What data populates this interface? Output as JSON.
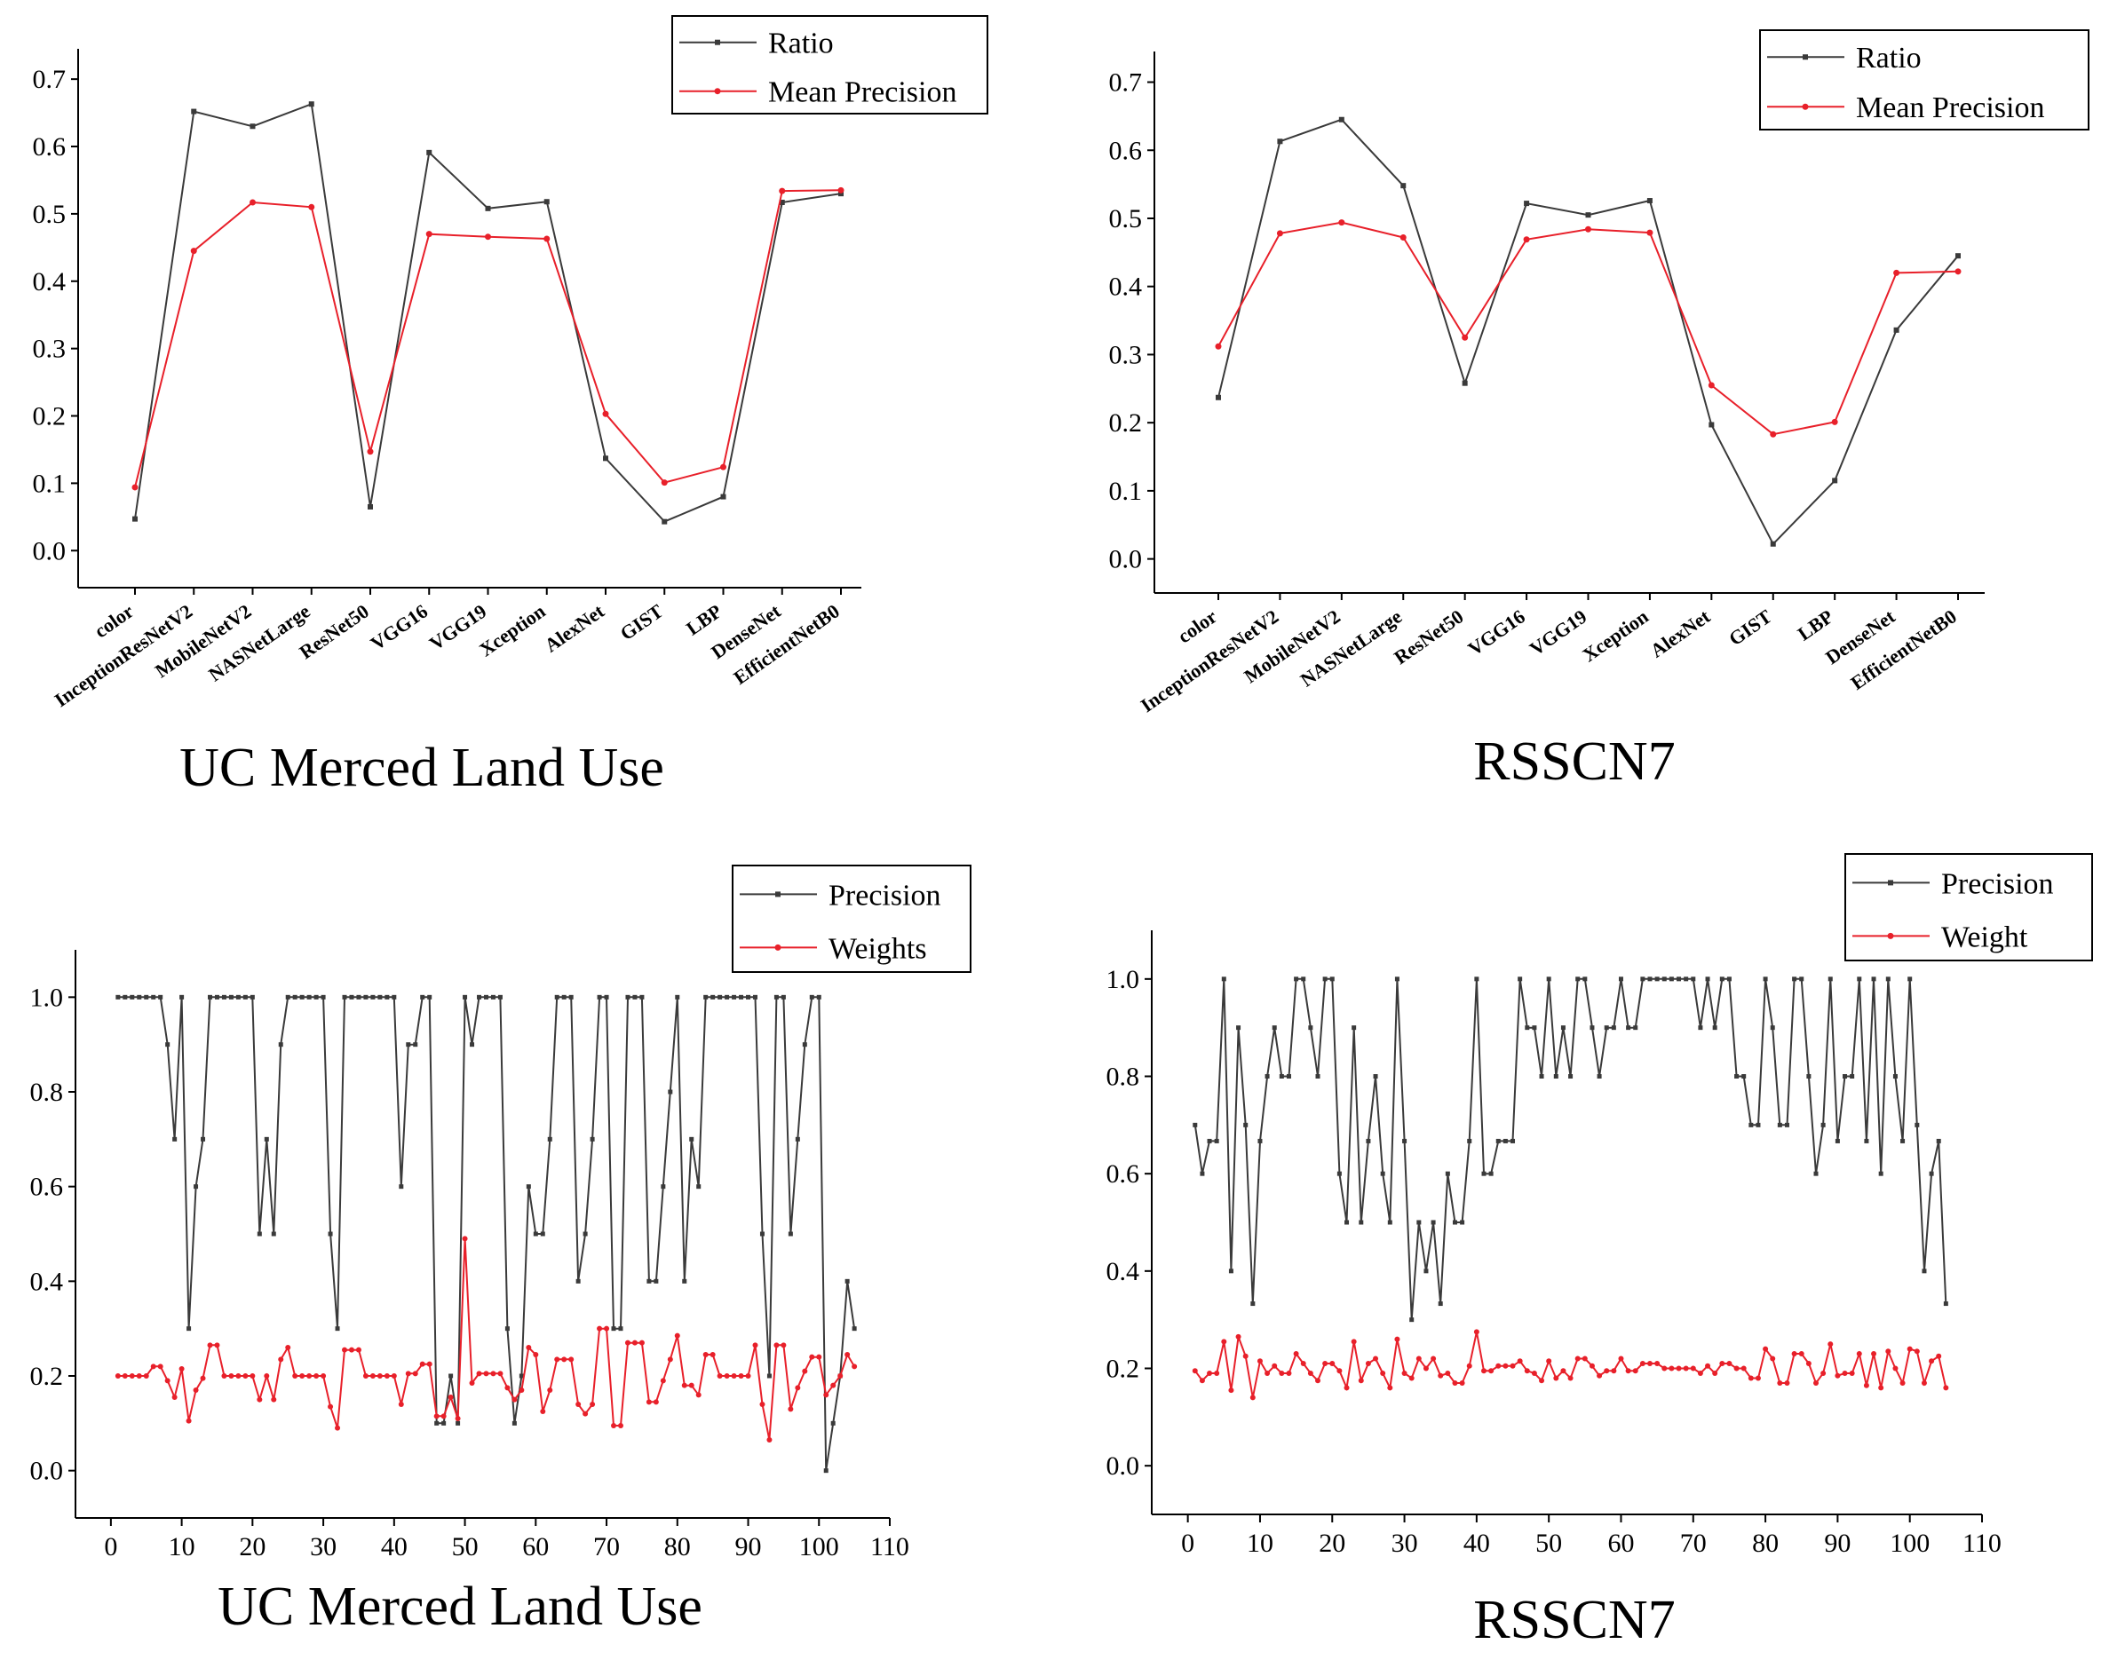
{
  "chart_data": [
    {
      "type": "line",
      "title": "UC Merced Land Use",
      "xlabel": "",
      "ylabel": "",
      "categories": [
        "color",
        "InceptionResNetV2",
        "MobileNetV2",
        "NASNetLarge",
        "ResNet50",
        "VGG16",
        "VGG19",
        "Xception",
        "AlexNet",
        "GIST",
        "LBP",
        "DenseNet",
        "EfficientNetB0"
      ],
      "ylim": [
        -0.055,
        0.745
      ],
      "yticks": [
        0.0,
        0.1,
        0.2,
        0.3,
        0.4,
        0.5,
        0.6,
        0.7
      ],
      "ytick_labels": [
        "0.0",
        "0.1",
        "0.2",
        "0.3",
        "0.4",
        "0.5",
        "0.6",
        "0.7"
      ],
      "legend_position": "top-right",
      "series": [
        {
          "name": "Ratio",
          "color": "#3a3a3a",
          "marker": "square",
          "values": [
            0.047,
            0.652,
            0.63,
            0.663,
            0.065,
            0.591,
            0.508,
            0.518,
            0.137,
            0.043,
            0.08,
            0.517,
            0.53
          ]
        },
        {
          "name": "Mean Precision",
          "color": "#e8202a",
          "marker": "circle",
          "values": [
            0.094,
            0.445,
            0.517,
            0.51,
            0.147,
            0.47,
            0.466,
            0.463,
            0.203,
            0.101,
            0.124,
            0.534,
            0.535
          ]
        }
      ]
    },
    {
      "type": "line",
      "title": "RSSCN7",
      "xlabel": "",
      "ylabel": "",
      "categories": [
        "color",
        "InceptionResNetV2",
        "MobileNetV2",
        "NASNetLarge",
        "ResNet50",
        "VGG16",
        "VGG19",
        "Xception",
        "AlexNet",
        "GIST",
        "LBP",
        "DenseNet",
        "EfficientNetB0"
      ],
      "ylim": [
        -0.05,
        0.745
      ],
      "yticks": [
        0.0,
        0.1,
        0.2,
        0.3,
        0.4,
        0.5,
        0.6,
        0.7
      ],
      "ytick_labels": [
        "0.0",
        "0.1",
        "0.2",
        "0.3",
        "0.4",
        "0.5",
        "0.6",
        "0.7"
      ],
      "legend_position": "top-right",
      "series": [
        {
          "name": "Ratio",
          "color": "#3a3a3a",
          "marker": "square",
          "values": [
            0.237,
            0.613,
            0.645,
            0.548,
            0.258,
            0.522,
            0.505,
            0.526,
            0.197,
            0.022,
            0.115,
            0.336,
            0.445
          ]
        },
        {
          "name": "Mean Precision",
          "color": "#e8202a",
          "marker": "circle",
          "values": [
            0.312,
            0.478,
            0.494,
            0.472,
            0.325,
            0.469,
            0.484,
            0.479,
            0.255,
            0.183,
            0.201,
            0.42,
            0.422
          ]
        }
      ]
    },
    {
      "type": "line",
      "title": "UC Merced Land Use",
      "xlabel": "",
      "ylabel": "",
      "xlim": [
        -5,
        110
      ],
      "xticks": [
        0,
        10,
        20,
        30,
        40,
        50,
        60,
        70,
        80,
        90,
        100,
        110
      ],
      "xtick_labels": [
        "0",
        "10",
        "20",
        "30",
        "40",
        "50",
        "60",
        "70",
        "80",
        "90",
        "100",
        "110"
      ],
      "ylim": [
        -0.1,
        1.1
      ],
      "yticks": [
        0.0,
        0.2,
        0.4,
        0.6,
        0.8,
        1.0
      ],
      "ytick_labels": [
        "0.0",
        "0.2",
        "0.4",
        "0.6",
        "0.8",
        "1.0"
      ],
      "legend_position": "top-right",
      "x_start": 1,
      "series": [
        {
          "name": "Precision",
          "color": "#3a3a3a",
          "marker": "square",
          "values": [
            1,
            1,
            1,
            1,
            1,
            1,
            1,
            0.9,
            0.7,
            1,
            0.3,
            0.6,
            0.7,
            1,
            1,
            1,
            1,
            1,
            1,
            1,
            0.5,
            0.7,
            0.5,
            0.9,
            1,
            1,
            1,
            1,
            1,
            1,
            0.5,
            0.3,
            1,
            1,
            1,
            1,
            1,
            1,
            1,
            1,
            0.6,
            0.9,
            0.9,
            1,
            1,
            0.1,
            0.1,
            0.2,
            0.1,
            1,
            0.9,
            1,
            1,
            1,
            1,
            0.3,
            0.1,
            0.2,
            0.6,
            0.5,
            0.5,
            0.7,
            1,
            1,
            1,
            0.4,
            0.5,
            0.7,
            1,
            1,
            0.3,
            0.3,
            1,
            1,
            1,
            0.4,
            0.4,
            0.6,
            0.8,
            1,
            0.4,
            0.7,
            0.6,
            1,
            1,
            1,
            1,
            1,
            1,
            1,
            1,
            0.5,
            0.2,
            1,
            1,
            0.5,
            0.7,
            0.9,
            1,
            1,
            0,
            0.1,
            0.2,
            0.4,
            0.3
          ]
        },
        {
          "name": "Weights",
          "color": "#e8202a",
          "marker": "circle",
          "values": [
            0.2,
            0.2,
            0.2,
            0.2,
            0.2,
            0.22,
            0.22,
            0.19,
            0.155,
            0.215,
            0.105,
            0.17,
            0.195,
            0.265,
            0.265,
            0.2,
            0.2,
            0.2,
            0.2,
            0.2,
            0.15,
            0.2,
            0.15,
            0.235,
            0.26,
            0.2,
            0.2,
            0.2,
            0.2,
            0.2,
            0.135,
            0.09,
            0.255,
            0.255,
            0.255,
            0.2,
            0.2,
            0.2,
            0.2,
            0.2,
            0.14,
            0.205,
            0.205,
            0.225,
            0.225,
            0.115,
            0.115,
            0.155,
            0.11,
            0.49,
            0.185,
            0.205,
            0.205,
            0.205,
            0.205,
            0.175,
            0.15,
            0.17,
            0.26,
            0.245,
            0.125,
            0.17,
            0.235,
            0.235,
            0.235,
            0.14,
            0.12,
            0.14,
            0.3,
            0.3,
            0.095,
            0.095,
            0.27,
            0.27,
            0.27,
            0.145,
            0.145,
            0.19,
            0.235,
            0.285,
            0.18,
            0.18,
            0.16,
            0.245,
            0.245,
            0.2,
            0.2,
            0.2,
            0.2,
            0.2,
            0.265,
            0.14,
            0.065,
            0.265,
            0.265,
            0.13,
            0.175,
            0.21,
            0.24,
            0.24,
            0.16,
            0.18,
            0.2,
            0.245,
            0.22
          ]
        }
      ]
    },
    {
      "type": "line",
      "title": "RSSCN7",
      "xlabel": "",
      "ylabel": "",
      "xlim": [
        -5,
        110
      ],
      "xticks": [
        0,
        10,
        20,
        30,
        40,
        50,
        60,
        70,
        80,
        90,
        100,
        110
      ],
      "xtick_labels": [
        "0",
        "10",
        "20",
        "30",
        "40",
        "50",
        "60",
        "70",
        "80",
        "90",
        "100",
        "110"
      ],
      "ylim": [
        -0.1,
        1.1
      ],
      "yticks": [
        0.0,
        0.2,
        0.4,
        0.6,
        0.8,
        1.0
      ],
      "ytick_labels": [
        "0.0",
        "0.2",
        "0.4",
        "0.6",
        "0.8",
        "1.0"
      ],
      "legend_position": "top-right",
      "x_start": 1,
      "series": [
        {
          "name": "Precision",
          "color": "#3a3a3a",
          "marker": "square",
          "values": [
            0.7,
            0.6,
            0.667,
            0.667,
            1,
            0.4,
            0.9,
            0.7,
            0.333,
            0.667,
            0.8,
            0.9,
            0.8,
            0.8,
            1,
            1,
            0.9,
            0.8,
            1,
            1,
            0.6,
            0.5,
            0.9,
            0.5,
            0.667,
            0.8,
            0.6,
            0.5,
            1,
            0.667,
            0.3,
            0.5,
            0.4,
            0.5,
            0.333,
            0.6,
            0.5,
            0.5,
            0.667,
            1,
            0.6,
            0.6,
            0.667,
            0.667,
            0.667,
            1,
            0.9,
            0.9,
            0.8,
            1,
            0.8,
            0.9,
            0.8,
            1,
            1,
            0.9,
            0.8,
            0.9,
            0.9,
            1,
            0.9,
            0.9,
            1,
            1,
            1,
            1,
            1,
            1,
            1,
            1,
            0.9,
            1,
            0.9,
            1,
            1,
            0.8,
            0.8,
            0.7,
            0.7,
            1,
            0.9,
            0.7,
            0.7,
            1,
            1,
            0.8,
            0.6,
            0.7,
            1,
            0.667,
            0.8,
            0.8,
            1,
            0.667,
            1,
            0.6,
            1,
            0.8,
            0.667,
            1,
            0.7,
            0.4,
            0.6,
            0.667,
            0.333
          ]
        },
        {
          "name": "Weight",
          "color": "#e8202a",
          "marker": "circle",
          "values": [
            0.195,
            0.175,
            0.19,
            0.19,
            0.255,
            0.155,
            0.265,
            0.225,
            0.14,
            0.215,
            0.19,
            0.205,
            0.19,
            0.19,
            0.23,
            0.21,
            0.19,
            0.175,
            0.21,
            0.21,
            0.195,
            0.16,
            0.255,
            0.175,
            0.21,
            0.22,
            0.19,
            0.16,
            0.26,
            0.19,
            0.18,
            0.22,
            0.2,
            0.22,
            0.185,
            0.19,
            0.17,
            0.17,
            0.205,
            0.275,
            0.195,
            0.195,
            0.205,
            0.205,
            0.205,
            0.215,
            0.195,
            0.19,
            0.175,
            0.215,
            0.18,
            0.195,
            0.18,
            0.22,
            0.22,
            0.205,
            0.185,
            0.195,
            0.195,
            0.22,
            0.195,
            0.195,
            0.21,
            0.21,
            0.21,
            0.2,
            0.2,
            0.2,
            0.2,
            0.2,
            0.19,
            0.205,
            0.19,
            0.21,
            0.21,
            0.2,
            0.2,
            0.18,
            0.18,
            0.24,
            0.22,
            0.17,
            0.17,
            0.23,
            0.23,
            0.21,
            0.17,
            0.19,
            0.25,
            0.185,
            0.19,
            0.19,
            0.23,
            0.165,
            0.23,
            0.16,
            0.235,
            0.2,
            0.17,
            0.24,
            0.235,
            0.17,
            0.215,
            0.225,
            0.16
          ]
        }
      ]
    }
  ]
}
